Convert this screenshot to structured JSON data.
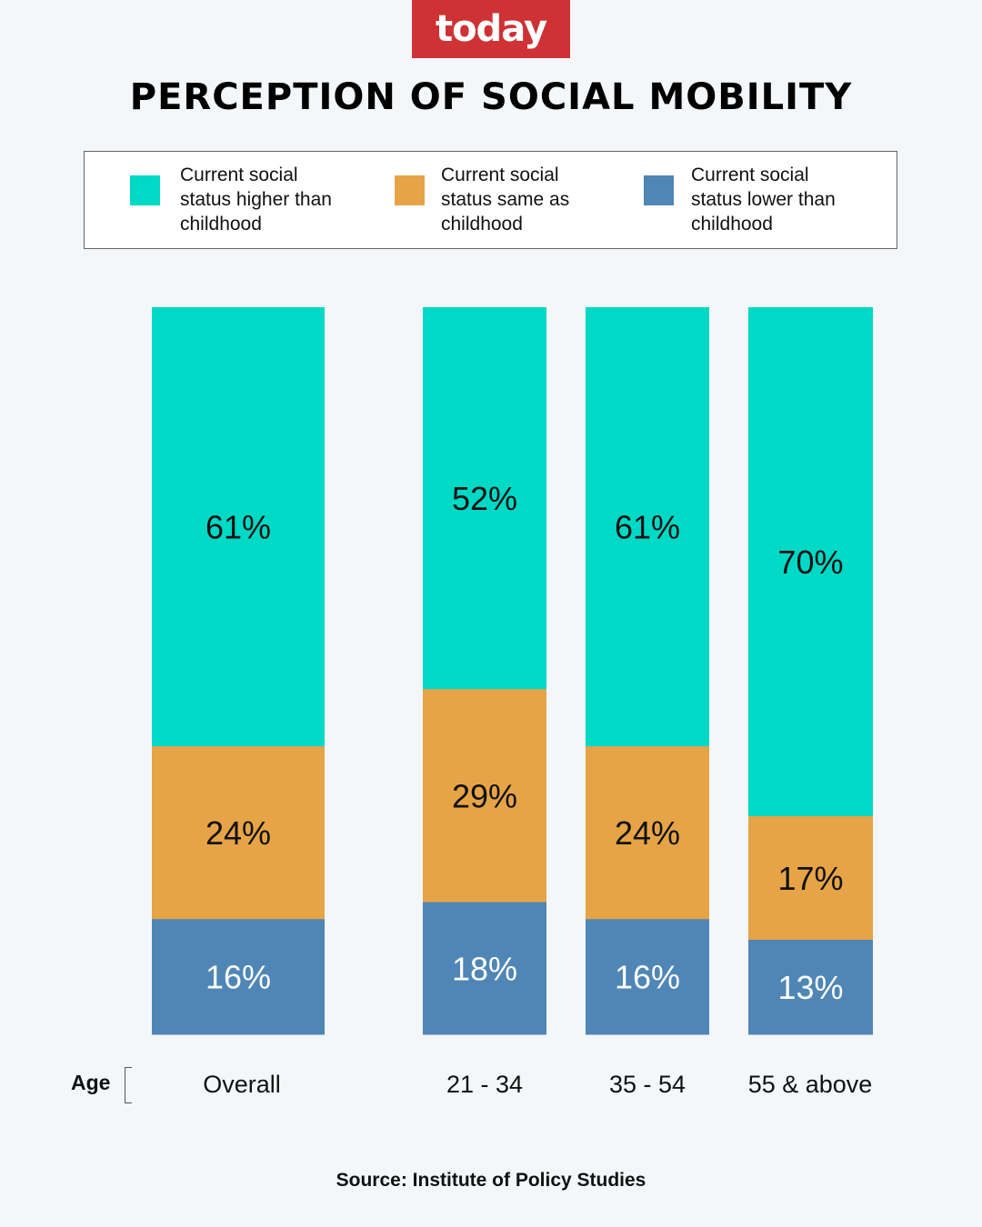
{
  "logo": {
    "text": "today"
  },
  "title": "PERCEPTION OF SOCIAL MOBILITY",
  "legend": [
    {
      "label": "Current social status higher than childhood",
      "lines": [
        "Current social",
        "status higher than",
        "childhood"
      ],
      "color": "#00d9c6"
    },
    {
      "label": "Current social status same as childhood",
      "lines": [
        "Current social",
        "status same as",
        "childhood"
      ],
      "color": "#e6a446"
    },
    {
      "label": "Current social status lower than childhood",
      "lines": [
        "Current social",
        "status lower than",
        "childhood"
      ],
      "color": "#4f86b6"
    }
  ],
  "axis": {
    "age_label": "Age"
  },
  "source": "Source: Institute of Policy Studies",
  "chart_data": {
    "type": "bar",
    "stacked": true,
    "title": "PERCEPTION OF SOCIAL MOBILITY",
    "xlabel": "Age",
    "ylabel": "",
    "categories": [
      "Overall",
      "21 - 34",
      "35 - 54",
      "55 & above"
    ],
    "series": [
      {
        "name": "Current social status higher than childhood",
        "values": [
          61,
          52,
          61,
          70
        ],
        "color": "#00d9c6"
      },
      {
        "name": "Current social status same as childhood",
        "values": [
          24,
          29,
          24,
          17
        ],
        "color": "#e6a446"
      },
      {
        "name": "Current social status lower than childhood",
        "values": [
          16,
          18,
          16,
          13
        ],
        "color": "#4f86b6"
      }
    ],
    "value_suffix": "%",
    "legend_position": "top",
    "grid": false
  }
}
